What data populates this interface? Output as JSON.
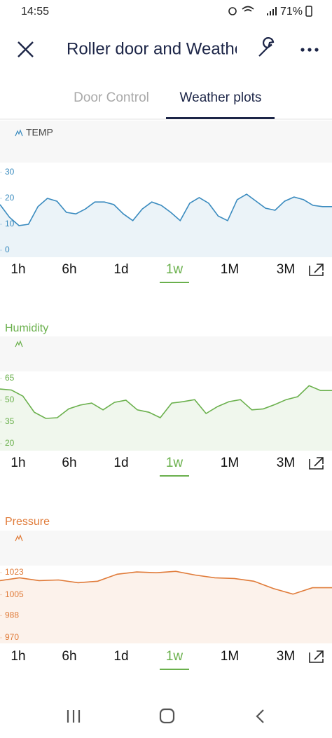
{
  "status_bar": {
    "time": "14:55",
    "battery": "71%"
  },
  "header": {
    "title": "Roller door and Weather"
  },
  "tabs": {
    "items": [
      "Door Control",
      "Weather plots"
    ],
    "active": 1
  },
  "ranges": {
    "options": [
      "1h",
      "6h",
      "1d",
      "1w",
      "1M",
      "3M"
    ],
    "active": 3
  },
  "chart_data": [
    {
      "type": "line",
      "title": "TEMP",
      "color": "#3a8bbf",
      "ylim": [
        0,
        30
      ],
      "yticks": [
        0,
        10,
        20,
        30
      ],
      "values": [
        17.6,
        12.7,
        9.5,
        10,
        16.8,
        20,
        18.9,
        14.6,
        14,
        15.9,
        18.6,
        18.6,
        17.6,
        14,
        11.4,
        15.9,
        18.6,
        17.3,
        14.6,
        11.4,
        18.1,
        20.3,
        18.1,
        13.2,
        11.4,
        19.5,
        21.6,
        18.9,
        16.2,
        15.4,
        18.9,
        20.5,
        19.5,
        17.3,
        16.8,
        16.8
      ]
    },
    {
      "type": "line",
      "title": "Humidity",
      "color": "#6ab04c",
      "ylim": [
        20,
        65
      ],
      "yticks": [
        20,
        35,
        50,
        65
      ],
      "values": [
        57.7,
        57,
        52.8,
        41.7,
        37.4,
        37.9,
        44,
        46.6,
        48,
        43.3,
        48.5,
        50,
        43.3,
        41.7,
        37.9,
        48,
        49,
        50.4,
        40.8,
        45.6,
        49,
        50.4,
        43.3,
        44,
        47,
        50.4,
        52.4,
        60,
        56.7,
        56.7
      ]
    },
    {
      "type": "line",
      "title": "Pressure",
      "color": "#e07b39",
      "ylim": [
        970,
        1023
      ],
      "yticks": [
        970,
        988,
        1005,
        1023
      ],
      "values": [
        1016.5,
        1018.8,
        1016.5,
        1017,
        1014.8,
        1016,
        1021.7,
        1023.5,
        1022.9,
        1024,
        1021,
        1018.8,
        1018.2,
        1016,
        1010,
        1005.5,
        1010.7,
        1010.7
      ]
    }
  ]
}
